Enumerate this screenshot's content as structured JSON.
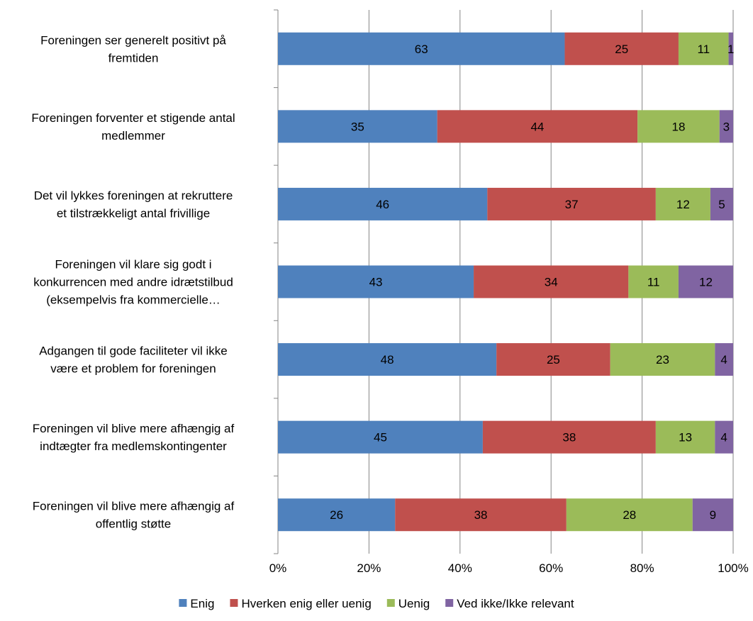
{
  "chart_data": {
    "type": "bar",
    "orientation": "horizontal",
    "stacked": true,
    "normalized": true,
    "categories": [
      [
        "Foreningen ser generelt positivt på",
        "fremtiden"
      ],
      [
        "Foreningen forventer et stigende antal",
        "medlemmer"
      ],
      [
        "Det vil lykkes foreningen at rekruttere",
        "et tilstrækkeligt antal frivillige"
      ],
      [
        "Foreningen vil klare sig godt i",
        "konkurrencen med andre idrætstilbud",
        "(eksempelvis fra kommercielle…"
      ],
      [
        "Adgangen til gode faciliteter vil ikke",
        "være et problem for foreningen"
      ],
      [
        "Foreningen vil blive mere afhængig af",
        "indtægter fra medlemskontingenter"
      ],
      [
        "Foreningen vil blive mere afhængig af",
        "offentlig støtte"
      ]
    ],
    "series": [
      {
        "name": "Enig",
        "color": "#4f81bd",
        "values": [
          63,
          35,
          46,
          43,
          48,
          45,
          26
        ]
      },
      {
        "name": "Hverken enig eller uenig",
        "color": "#c0504d",
        "values": [
          25,
          44,
          37,
          34,
          25,
          38,
          38
        ]
      },
      {
        "name": "Uenig",
        "color": "#9bbb59",
        "values": [
          11,
          18,
          12,
          11,
          23,
          13,
          28
        ]
      },
      {
        "name": "Ved ikke/Ikke relevant",
        "color": "#8064a2",
        "values": [
          1,
          3,
          5,
          12,
          4,
          4,
          9
        ]
      }
    ],
    "x_ticks": [
      "0%",
      "20%",
      "40%",
      "60%",
      "80%",
      "100%"
    ],
    "xlim": [
      0,
      100
    ],
    "grid": true,
    "legend_position": "bottom"
  }
}
